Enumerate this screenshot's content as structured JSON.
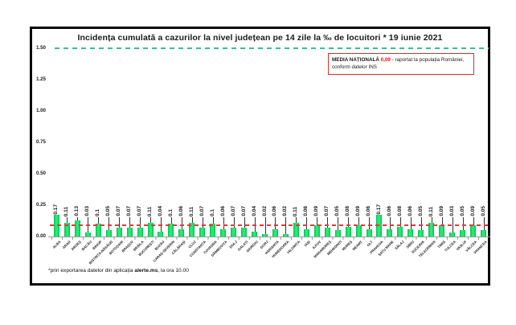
{
  "title": "Incidența cumulată a cazurilor la nivel județean pe 14 zile la ‰ de locuitori *  19 iunie 2021",
  "legend": {
    "label": "MEDIA NAȚIONALĂ",
    "value": "0,09",
    "text": "- raportat la populația României,",
    "line2": "conform datelor INS"
  },
  "footnote": {
    "prefix": "*prin exportarea datelor din aplicația ",
    "bold": "alerte.ms",
    "suffix": ", la ora 10.00"
  },
  "colors": {
    "bar": "#2dea77",
    "bar_edge": "#00c14f",
    "national_line": "#e03a38",
    "top_line": "#38bc9c",
    "legend_border": "#d93025",
    "value_red": "#ff0000"
  },
  "chart_data": {
    "type": "bar",
    "title": "Incidența cumulată a cazurilor la nivel județean pe 14 zile la ‰ de locuitori * 19 iunie 2021",
    "xlabel": "",
    "ylabel": "",
    "ylim": [
      0,
      1.5
    ],
    "grid": false,
    "y_ticks": [
      "0.00",
      "0.25",
      "0.50",
      "0.75",
      "1.00",
      "1.25",
      "1.50"
    ],
    "reference_line_value": 1.5,
    "national_average": 0.09,
    "categories": [
      "ALBA",
      "ARAD",
      "ARGEȘ",
      "BACĂU",
      "BIHOR",
      "BISTRIȚA-NĂSĂUD",
      "BOTOȘANI",
      "BRAȘOV",
      "BRĂILA",
      "BUCUREȘTI",
      "BUZĂU",
      "CARAȘ-SEVERIN",
      "CĂLĂRAȘI",
      "CLUJ",
      "CONSTANȚA",
      "COVASNA",
      "DÂMBOVIȚA",
      "DOLJ",
      "GALAȚI",
      "GIURGIU",
      "GORJ",
      "HARGHITA",
      "HUNEDOARA",
      "IALOMIȚA",
      "IAȘI",
      "ILFOV",
      "MARAMUREȘ",
      "MEHEDINȚI",
      "MUREȘ",
      "NEAMȚ",
      "OLT",
      "PRAHOVA",
      "SATU MARE",
      "SĂLAJ",
      "SIBIU",
      "SUCEAVA",
      "TELEORMAN",
      "TIMIȘ",
      "TULCEA",
      "VASLUI",
      "VÂLCEA",
      "VRANCEA"
    ],
    "values": [
      0.17,
      0.11,
      0.13,
      0.03,
      0.1,
      0.05,
      0.07,
      0.07,
      0.07,
      0.11,
      0.04,
      0.1,
      0.06,
      0.11,
      0.07,
      0.1,
      0.06,
      0.07,
      0.07,
      0.04,
      0.02,
      0.06,
      0.02,
      0.11,
      0.06,
      0.09,
      0.07,
      0.05,
      0.08,
      0.09,
      0.06,
      0.17,
      0.06,
      0.08,
      0.06,
      0.05,
      0.11,
      0.09,
      0.03,
      0.05,
      0.09,
      0.05
    ]
  }
}
